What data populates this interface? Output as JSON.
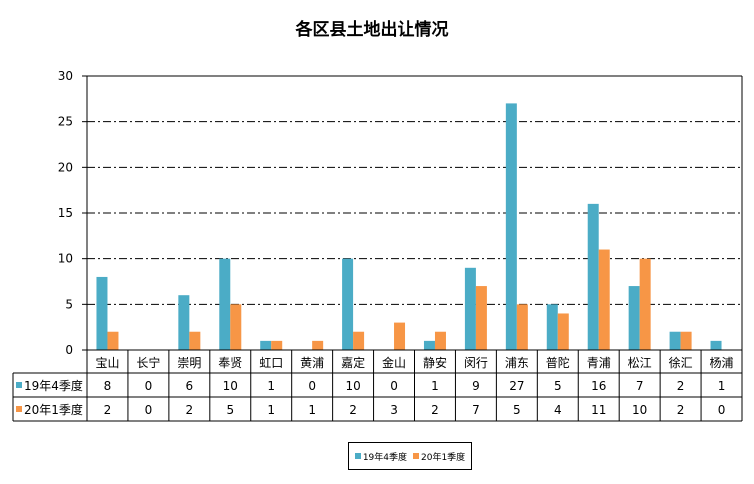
{
  "chart_data": {
    "type": "bar",
    "title": "各区县土地出让情况",
    "categories": [
      "宝山",
      "长宁",
      "崇明",
      "奉贤",
      "虹口",
      "黄浦",
      "嘉定",
      "金山",
      "静安",
      "闵行",
      "浦东",
      "普陀",
      "青浦",
      "松江",
      "徐汇",
      "杨浦"
    ],
    "series": [
      {
        "name": "19年4季度",
        "color": "#4BACC6",
        "values": [
          8,
          0,
          6,
          10,
          1,
          0,
          10,
          0,
          1,
          9,
          27,
          5,
          16,
          7,
          2,
          1
        ]
      },
      {
        "name": "20年1季度",
        "color": "#F79646",
        "values": [
          2,
          0,
          2,
          5,
          1,
          1,
          2,
          3,
          2,
          7,
          5,
          4,
          11,
          10,
          2,
          0
        ]
      }
    ],
    "ylim": [
      0,
      30
    ],
    "yticks": [
      0,
      5,
      10,
      15,
      20,
      25,
      30
    ],
    "grid": "dash-dot horizontal",
    "legend_position": "bottom",
    "data_table": true
  }
}
